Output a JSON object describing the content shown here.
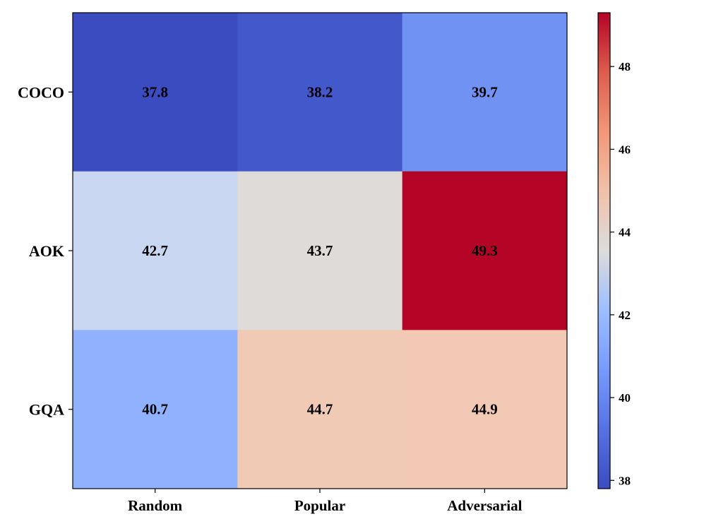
{
  "chart_data": {
    "type": "heatmap",
    "title": "",
    "xlabel": "",
    "ylabel": "",
    "x_categories": [
      "Random",
      "Popular",
      "Adversarial"
    ],
    "y_categories": [
      "COCO",
      "AOK",
      "GQA"
    ],
    "values": [
      [
        37.8,
        38.2,
        39.7
      ],
      [
        42.7,
        43.7,
        49.3
      ],
      [
        40.7,
        44.7,
        44.9
      ]
    ],
    "colormap": "coolwarm",
    "colorbar": {
      "min": 37.8,
      "max": 49.3,
      "ticks": [
        38,
        40,
        42,
        44,
        46,
        48
      ],
      "placement": "right"
    },
    "grid": false,
    "cell_label_format": "one decimal",
    "colors": {
      "37.8": "#3b4cc0",
      "38.2": "#4358cb",
      "39.7": "#6f92f3",
      "40.7": "#90b2fe",
      "42.7": "#c8d6f1",
      "43.7": "#dfdbd9",
      "44.7": "#f1cab6",
      "44.9": "#f2c9b4",
      "49.3": "#b40426"
    }
  }
}
